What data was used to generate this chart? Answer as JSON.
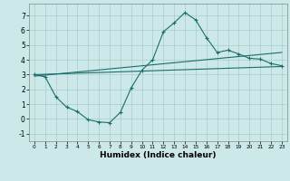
{
  "xlabel": "Humidex (Indice chaleur)",
  "bg_color": "#cce8e8",
  "line_color": "#1a6e6a",
  "grid_color": "#aacccc",
  "xlim": [
    -0.5,
    23.5
  ],
  "ylim": [
    -1.5,
    7.8
  ],
  "xticks": [
    0,
    1,
    2,
    3,
    4,
    5,
    6,
    7,
    8,
    9,
    10,
    11,
    12,
    13,
    14,
    15,
    16,
    17,
    18,
    19,
    20,
    21,
    22,
    23
  ],
  "yticks": [
    -1,
    0,
    1,
    2,
    3,
    4,
    5,
    6,
    7
  ],
  "line1_x": [
    0,
    1,
    2,
    3,
    4,
    5,
    6,
    7,
    8,
    9,
    10,
    11,
    12,
    13,
    14,
    15,
    16,
    17,
    18,
    19,
    20,
    21,
    22,
    23
  ],
  "line1_y": [
    3.0,
    2.85,
    1.5,
    0.8,
    0.5,
    -0.05,
    -0.2,
    -0.25,
    0.45,
    2.1,
    3.3,
    4.0,
    5.9,
    6.5,
    7.2,
    6.7,
    5.5,
    4.5,
    4.65,
    4.4,
    4.1,
    4.05,
    3.75,
    3.6
  ],
  "line2_x": [
    0,
    23
  ],
  "line2_y": [
    3.0,
    3.55
  ],
  "line3_x": [
    0,
    23
  ],
  "line3_y": [
    2.9,
    4.5
  ]
}
